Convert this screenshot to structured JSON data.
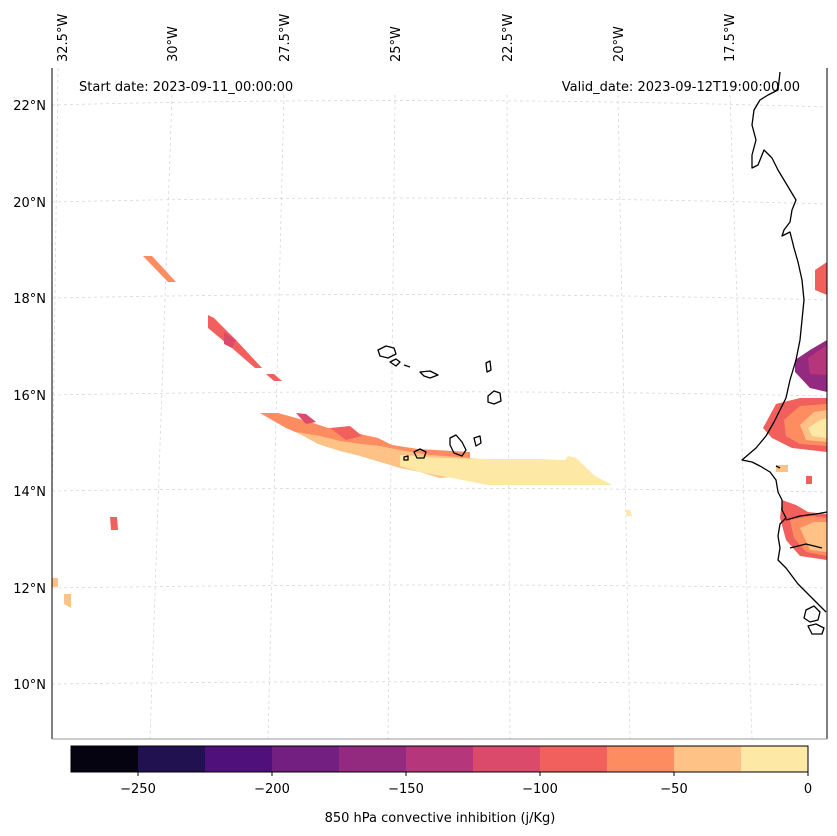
{
  "map": {
    "start_label": "Start date: 2023-09-11_00:00:00",
    "valid_label": "Valid_date: 2023-09-12T19:00:00.00",
    "lon_labels": [
      "32.5°W",
      "30°W",
      "27.5°W",
      "25°W",
      "22.5°W",
      "20°W",
      "17.5°W"
    ],
    "lat_labels": [
      "22°N",
      "20°N",
      "18°N",
      "16°N",
      "14°N",
      "12°N",
      "10°N"
    ],
    "grid": true,
    "coastline_color": "#000000",
    "grid_color": "#cccccc"
  },
  "colorbar": {
    "label": "850 hPa convective inhibition (j/Kg)",
    "ticks": [
      "−250",
      "−200",
      "−150",
      "−100",
      "−50",
      "0"
    ],
    "colors": [
      "#05030f",
      "#221150",
      "#4f107b",
      "#721f81",
      "#932a80",
      "#b5367a",
      "#db4a6b",
      "#f1605d",
      "#fd8d60",
      "#fec287",
      "#fde8a6"
    ]
  }
}
